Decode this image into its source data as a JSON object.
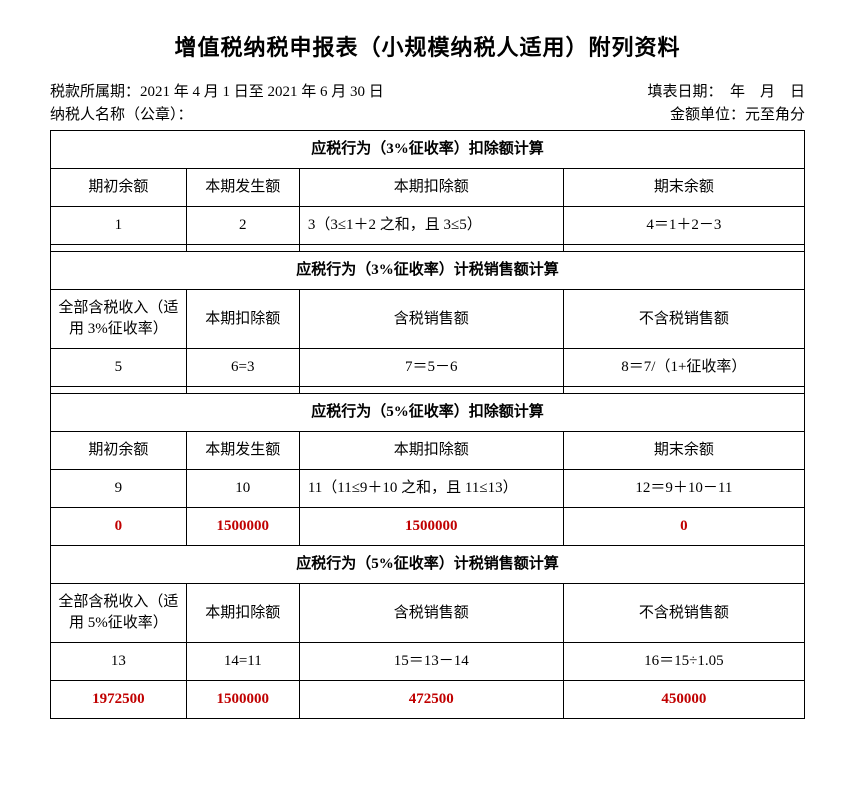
{
  "title": "增值税纳税申报表（小规模纳税人适用）附列资料",
  "meta": {
    "period_label": "税款所属期：",
    "period_value": "2021 年 4 月 1 日至 2021 年 6 月 30 日",
    "fill_date_label": "填表日期：",
    "fill_date_value": "年　月　日",
    "taxpayer_label": "纳税人名称（公章）：",
    "unit_label": "金额单位：",
    "unit_value": "元至角分"
  },
  "section1": {
    "header": "应税行为（3%征收率）扣除额计算",
    "h1": "期初余额",
    "h2": "本期发生额",
    "h3": "本期扣除额",
    "h4": "期末余额",
    "f1": "1",
    "f2": "2",
    "f3": "3（3≤1＋2 之和，且 3≤5）",
    "f4": "4＝1＋2－3"
  },
  "section2": {
    "header": "应税行为（3%征收率）计税销售额计算",
    "h1": "全部含税收入（适用 3%征收率）",
    "h2": "本期扣除额",
    "h3": "含税销售额",
    "h4": "不含税销售额",
    "f1": "5",
    "f2": "6=3",
    "f3": "7＝5－6",
    "f4": "8＝7/（1+征收率）"
  },
  "section3": {
    "header": "应税行为（5%征收率）扣除额计算",
    "h1": "期初余额",
    "h2": "本期发生额",
    "h3": "本期扣除额",
    "h4": "期末余额",
    "f1": "9",
    "f2": "10",
    "f3": "11（11≤9＋10 之和，且 11≤13）",
    "f4": "12＝9＋10－11",
    "v1": "0",
    "v2": "1500000",
    "v3": "1500000",
    "v4": "0"
  },
  "section4": {
    "header": "应税行为（5%征收率）计税销售额计算",
    "h1": "全部含税收入（适用 5%征收率）",
    "h2": "本期扣除额",
    "h3": "含税销售额",
    "h4": "不含税销售额",
    "f1": "13",
    "f2": "14=11",
    "f3": "15＝13－14",
    "f4": "16＝15÷1.05",
    "v1": "1972500",
    "v2": "1500000",
    "v3": "472500",
    "v4": "450000"
  }
}
